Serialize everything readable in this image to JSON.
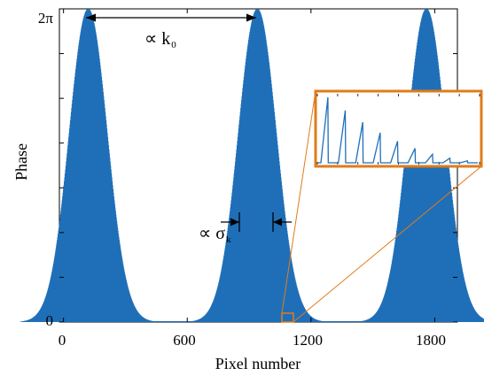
{
  "chart_data": {
    "type": "area",
    "xlabel": "Pixel number",
    "ylabel": "Phase",
    "xlim": [
      -20,
      1910
    ],
    "ylim": [
      0,
      6.2832
    ],
    "x_ticks": [
      0,
      600,
      1200,
      1800
    ],
    "x_tick_labels": [
      "0",
      "600",
      "1200",
      "1800"
    ],
    "y_ticks": [
      0,
      6.2832
    ],
    "y_tick_labels": [
      "0",
      "2π"
    ],
    "peaks": [
      {
        "center": 120,
        "height": 6.2832,
        "width_sigma": 110
      },
      {
        "center": 940,
        "height": 6.2832,
        "width_sigma": 110
      },
      {
        "center": 1760,
        "height": 6.2832,
        "width_sigma": 110
      }
    ],
    "fill_color": "#1f6fb8",
    "annotations": {
      "period": {
        "text": "∝ k",
        "subscript": "0",
        "from": 120,
        "to": 940
      },
      "width": {
        "text": "∝ σ",
        "subscript": "k"
      }
    },
    "inset": {
      "x_range": [
        1070,
        1130
      ],
      "sawtooth_peaks": [
        1.0,
        0.8,
        0.62,
        0.46,
        0.33,
        0.22,
        0.13,
        0.07,
        0.03
      ],
      "border_color": "#e07b1a",
      "line_color": "#1f6fb8"
    }
  }
}
